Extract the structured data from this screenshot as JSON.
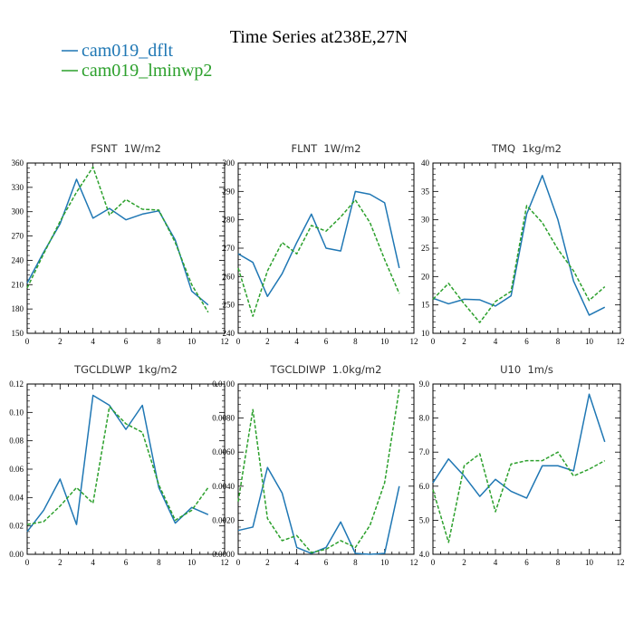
{
  "figure": {
    "title": "Time Series at238E,27N",
    "legend": {
      "placement": "top-left",
      "entries": [
        {
          "name": "cam019_dflt",
          "color": "#1f77b4",
          "dash": "solid"
        },
        {
          "name": "cam019_lminwp2",
          "color": "#2ca02c",
          "dash": "dashed"
        }
      ]
    }
  },
  "chart_data": [
    {
      "type": "line",
      "title": "FSNT  1W/m2",
      "xlim": [
        0,
        12
      ],
      "ylim": [
        150,
        360
      ],
      "x_ticks": [
        0,
        2,
        4,
        6,
        8,
        10,
        12
      ],
      "y_ticks": [
        150,
        180,
        210,
        240,
        270,
        300,
        330,
        360
      ],
      "y_tick_labels": [
        "150",
        "180",
        "210",
        "240",
        "270",
        "300",
        "330",
        "360"
      ],
      "x": [
        0,
        1,
        2,
        3,
        4,
        5,
        6,
        7,
        8,
        9,
        10,
        11
      ],
      "series": [
        {
          "name": "cam019_dflt",
          "values": [
            212,
            250,
            285,
            340,
            292,
            304,
            290,
            297,
            301,
            265,
            202,
            185
          ]
        },
        {
          "name": "cam019_lminwp2",
          "values": [
            206,
            248,
            288,
            324,
            355,
            296,
            315,
            303,
            302,
            262,
            210,
            176
          ]
        }
      ]
    },
    {
      "type": "line",
      "title": "FLNT  1W/m2",
      "xlim": [
        0,
        12
      ],
      "ylim": [
        240,
        300
      ],
      "x_ticks": [
        0,
        2,
        4,
        6,
        8,
        10,
        12
      ],
      "y_ticks": [
        240,
        250,
        260,
        270,
        280,
        290,
        300
      ],
      "y_tick_labels": [
        "240",
        "250",
        "260",
        "270",
        "280",
        "290",
        "300"
      ],
      "x": [
        0,
        1,
        2,
        3,
        4,
        5,
        6,
        7,
        8,
        9,
        10,
        11
      ],
      "series": [
        {
          "name": "cam019_dflt",
          "values": [
            268,
            265,
            253,
            261,
            272,
            282,
            270,
            269,
            290,
            289,
            286,
            263
          ]
        },
        {
          "name": "cam019_lminwp2",
          "values": [
            263,
            246,
            262,
            272,
            268,
            278,
            276,
            281,
            287,
            279,
            266,
            254
          ]
        }
      ]
    },
    {
      "type": "line",
      "title": "TMQ  1kg/m2",
      "xlim": [
        0,
        12
      ],
      "ylim": [
        10,
        40
      ],
      "x_ticks": [
        0,
        2,
        4,
        6,
        8,
        10,
        12
      ],
      "y_ticks": [
        10,
        15,
        20,
        25,
        30,
        35,
        40
      ],
      "y_tick_labels": [
        "10",
        "15",
        "20",
        "25",
        "30",
        "35",
        "40"
      ],
      "x": [
        0,
        1,
        2,
        3,
        4,
        5,
        6,
        7,
        8,
        9,
        10,
        11
      ],
      "series": [
        {
          "name": "cam019_dflt",
          "values": [
            16.2,
            15.2,
            16.0,
            15.9,
            14.8,
            16.6,
            31.0,
            37.8,
            30.0,
            19.2,
            13.2,
            14.6
          ]
        },
        {
          "name": "cam019_lminwp2",
          "values": [
            16.0,
            18.8,
            15.2,
            11.9,
            15.6,
            17.4,
            32.5,
            29.5,
            24.8,
            21.0,
            15.8,
            18.2
          ]
        }
      ]
    },
    {
      "type": "line",
      "title": "TGCLDLWP  1kg/m2",
      "xlim": [
        0,
        12
      ],
      "ylim": [
        0,
        0.12
      ],
      "x_ticks": [
        0,
        2,
        4,
        6,
        8,
        10,
        12
      ],
      "y_ticks": [
        0,
        0.02,
        0.04,
        0.06,
        0.08,
        0.1,
        0.12
      ],
      "y_tick_labels": [
        "0.00",
        "0.02",
        "0.04",
        "0.06",
        "0.08",
        "0.10",
        "0.12"
      ],
      "x": [
        0,
        1,
        2,
        3,
        4,
        5,
        6,
        7,
        8,
        9,
        10,
        11
      ],
      "series": [
        {
          "name": "cam019_dflt",
          "values": [
            0.016,
            0.031,
            0.053,
            0.021,
            0.112,
            0.105,
            0.088,
            0.105,
            0.047,
            0.022,
            0.033,
            0.028
          ]
        },
        {
          "name": "cam019_lminwp2",
          "values": [
            0.021,
            0.023,
            0.034,
            0.047,
            0.036,
            0.104,
            0.092,
            0.086,
            0.049,
            0.024,
            0.031,
            0.047
          ]
        }
      ]
    },
    {
      "type": "line",
      "title": "TGCLDIWP  1.0kg/m2",
      "xlim": [
        0,
        12
      ],
      "ylim": [
        0,
        0.01
      ],
      "x_ticks": [
        0,
        2,
        4,
        6,
        8,
        10,
        12
      ],
      "y_ticks": [
        0,
        0.002,
        0.004,
        0.006,
        0.008,
        0.01
      ],
      "y_tick_labels": [
        "0.0000",
        "0.0020",
        "0.0040",
        "0.0060",
        "0.0080",
        "0.0100"
      ],
      "x": [
        0,
        1,
        2,
        3,
        4,
        5,
        6,
        7,
        8,
        9,
        10,
        11
      ],
      "series": [
        {
          "name": "cam019_dflt",
          "values": [
            0.0014,
            0.0016,
            0.0051,
            0.0036,
            0.0004,
            5e-05,
            0.0004,
            0.0019,
            5e-05,
            0.0,
            5e-05,
            0.004
          ]
        },
        {
          "name": "cam019_lminwp2",
          "values": [
            0.0031,
            0.0085,
            0.0021,
            0.0008,
            0.0011,
            0.0001,
            0.0003,
            0.0008,
            0.0004,
            0.0017,
            0.0042,
            0.0097
          ]
        }
      ]
    },
    {
      "type": "line",
      "title": "U10  1m/s",
      "xlim": [
        0,
        12
      ],
      "ylim": [
        4,
        9
      ],
      "x_ticks": [
        0,
        2,
        4,
        6,
        8,
        10,
        12
      ],
      "y_ticks": [
        4,
        5,
        6,
        7,
        8,
        9
      ],
      "y_tick_labels": [
        "4.0",
        "5.0",
        "6.0",
        "7.0",
        "8.0",
        "9.0"
      ],
      "x": [
        0,
        1,
        2,
        3,
        4,
        5,
        6,
        7,
        8,
        9,
        10,
        11
      ],
      "series": [
        {
          "name": "cam019_dflt",
          "values": [
            6.1,
            6.8,
            6.3,
            5.7,
            6.2,
            5.85,
            5.65,
            6.6,
            6.6,
            6.45,
            8.7,
            7.3
          ]
        },
        {
          "name": "cam019_lminwp2",
          "values": [
            5.9,
            4.35,
            6.6,
            6.95,
            5.25,
            6.65,
            6.75,
            6.75,
            7.0,
            6.3,
            6.5,
            6.75
          ]
        }
      ]
    }
  ]
}
